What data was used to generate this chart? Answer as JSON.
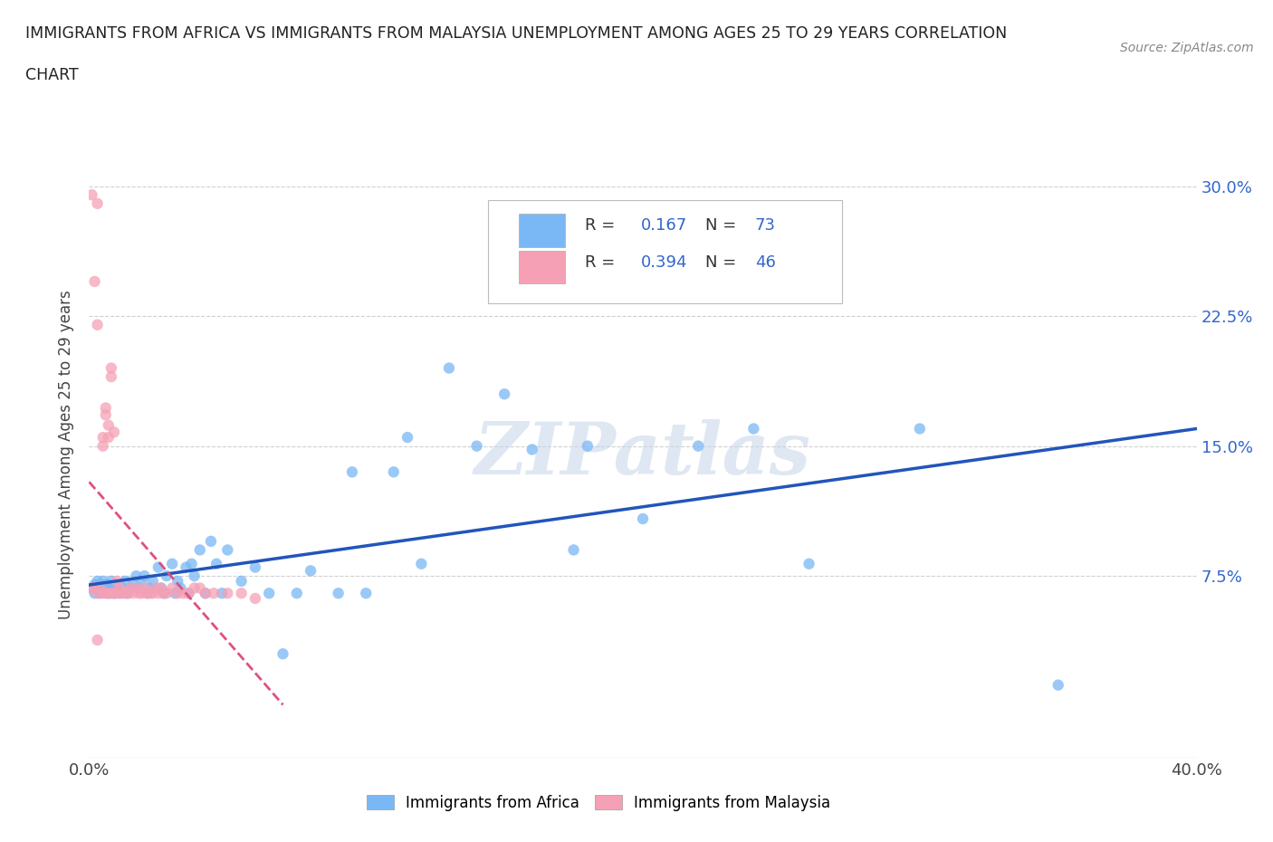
{
  "title_line1": "IMMIGRANTS FROM AFRICA VS IMMIGRANTS FROM MALAYSIA UNEMPLOYMENT AMONG AGES 25 TO 29 YEARS CORRELATION",
  "title_line2": "CHART",
  "source_text": "Source: ZipAtlas.com",
  "ylabel": "Unemployment Among Ages 25 to 29 years",
  "xlim": [
    0.0,
    0.4
  ],
  "ylim": [
    -0.03,
    0.32
  ],
  "ytick_vals": [
    0.075,
    0.15,
    0.225,
    0.3
  ],
  "yticklabels_right": [
    "7.5%",
    "15.0%",
    "22.5%",
    "30.0%"
  ],
  "grid_color": "#d0d0d0",
  "background_color": "#ffffff",
  "watermark": "ZIPatlas",
  "watermark_color": "#c8d8ea",
  "legend_label1": "Immigrants from Africa",
  "legend_label2": "Immigrants from Malaysia",
  "color_africa": "#7ab8f5",
  "color_malaysia": "#f5a0b5",
  "trendline_africa_color": "#2255bb",
  "trendline_malaysia_color": "#e05080",
  "africa_x": [
    0.001,
    0.002,
    0.002,
    0.003,
    0.003,
    0.004,
    0.004,
    0.005,
    0.005,
    0.006,
    0.006,
    0.007,
    0.007,
    0.008,
    0.008,
    0.009,
    0.01,
    0.01,
    0.011,
    0.012,
    0.013,
    0.014,
    0.015,
    0.016,
    0.017,
    0.018,
    0.019,
    0.02,
    0.021,
    0.022,
    0.023,
    0.025,
    0.026,
    0.027,
    0.028,
    0.03,
    0.031,
    0.032,
    0.033,
    0.035,
    0.036,
    0.037,
    0.038,
    0.04,
    0.042,
    0.044,
    0.046,
    0.048,
    0.05,
    0.055,
    0.06,
    0.065,
    0.07,
    0.075,
    0.08,
    0.09,
    0.095,
    0.1,
    0.11,
    0.115,
    0.12,
    0.13,
    0.14,
    0.15,
    0.16,
    0.175,
    0.18,
    0.2,
    0.22,
    0.24,
    0.26,
    0.3,
    0.35
  ],
  "africa_y": [
    0.068,
    0.07,
    0.065,
    0.072,
    0.068,
    0.07,
    0.065,
    0.068,
    0.072,
    0.07,
    0.068,
    0.065,
    0.07,
    0.072,
    0.068,
    0.065,
    0.07,
    0.068,
    0.065,
    0.068,
    0.072,
    0.065,
    0.068,
    0.07,
    0.075,
    0.068,
    0.072,
    0.075,
    0.065,
    0.068,
    0.072,
    0.08,
    0.068,
    0.065,
    0.075,
    0.082,
    0.065,
    0.072,
    0.068,
    0.08,
    0.065,
    0.082,
    0.075,
    0.09,
    0.065,
    0.095,
    0.082,
    0.065,
    0.09,
    0.072,
    0.08,
    0.065,
    0.03,
    0.065,
    0.078,
    0.065,
    0.135,
    0.065,
    0.135,
    0.155,
    0.082,
    0.195,
    0.15,
    0.18,
    0.148,
    0.09,
    0.15,
    0.108,
    0.15,
    0.16,
    0.082,
    0.16,
    0.012
  ],
  "malaysia_x": [
    0.001,
    0.002,
    0.003,
    0.004,
    0.005,
    0.005,
    0.006,
    0.006,
    0.007,
    0.007,
    0.008,
    0.008,
    0.009,
    0.009,
    0.01,
    0.01,
    0.011,
    0.012,
    0.013,
    0.014,
    0.015,
    0.016,
    0.017,
    0.018,
    0.019,
    0.02,
    0.021,
    0.022,
    0.023,
    0.024,
    0.025,
    0.026,
    0.027,
    0.028,
    0.03,
    0.032,
    0.034,
    0.036,
    0.038,
    0.04,
    0.042,
    0.045,
    0.05,
    0.055,
    0.06,
    0.003
  ],
  "malaysia_y": [
    0.068,
    0.068,
    0.065,
    0.068,
    0.065,
    0.15,
    0.065,
    0.168,
    0.155,
    0.065,
    0.19,
    0.065,
    0.158,
    0.065,
    0.072,
    0.065,
    0.068,
    0.065,
    0.065,
    0.065,
    0.068,
    0.065,
    0.068,
    0.065,
    0.065,
    0.068,
    0.065,
    0.065,
    0.065,
    0.068,
    0.065,
    0.068,
    0.065,
    0.065,
    0.068,
    0.065,
    0.065,
    0.065,
    0.068,
    0.068,
    0.065,
    0.065,
    0.065,
    0.065,
    0.062,
    0.29
  ],
  "malaysia_high_y": [
    [
      0.001,
      0.295
    ],
    [
      0.002,
      0.245
    ],
    [
      0.003,
      0.22
    ],
    [
      0.005,
      0.155
    ],
    [
      0.006,
      0.172
    ],
    [
      0.007,
      0.162
    ],
    [
      0.008,
      0.195
    ],
    [
      0.003,
      0.038
    ]
  ]
}
